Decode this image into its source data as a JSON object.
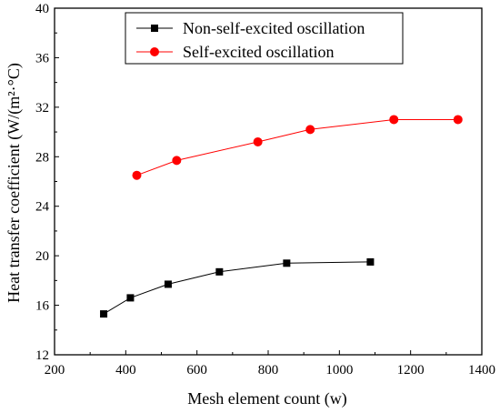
{
  "chart_data": {
    "type": "line",
    "title": "",
    "xlabel": "Mesh element count (w)",
    "ylabel": "Heat transfer coefficient (W/(m²·°C)",
    "xlim": [
      200,
      1400
    ],
    "ylim": [
      12,
      40
    ],
    "xticks": [
      200,
      400,
      600,
      800,
      1000,
      1200,
      1400
    ],
    "yticks": [
      12,
      16,
      20,
      24,
      28,
      32,
      36,
      40
    ],
    "xtick_labels": [
      "200",
      "400",
      "600",
      "800",
      "1000",
      "1200",
      "1400"
    ],
    "ytick_labels": [
      "12",
      "16",
      "20",
      "24",
      "28",
      "32",
      "36",
      "40"
    ],
    "legend_position": "top-center",
    "grid": false,
    "series": [
      {
        "name": "Non-self-excited oscillation",
        "color": "#000000",
        "marker": "square",
        "x": [
          338,
          413,
          519,
          663,
          852,
          1087
        ],
        "y": [
          15.3,
          16.6,
          17.7,
          18.7,
          19.4,
          19.5
        ]
      },
      {
        "name": "Self-excited oscillation",
        "color": "#ff0000",
        "marker": "circle",
        "x": [
          431,
          543,
          771,
          918,
          1153,
          1333
        ],
        "y": [
          26.5,
          27.7,
          29.2,
          30.2,
          31.0,
          31.0
        ]
      }
    ]
  }
}
